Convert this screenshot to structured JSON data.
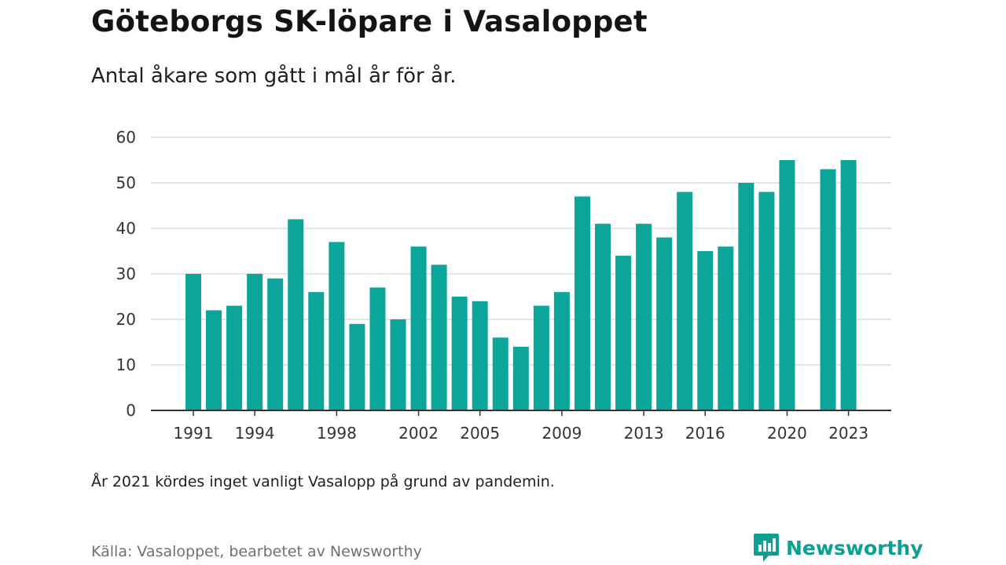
{
  "title": "Göteborgs SK-löpare i Vasaloppet",
  "subtitle": "Antal åkare som gått i mål år för år.",
  "note": "År 2021 kördes inget vanligt Vasalopp på grund av pandemin.",
  "source": "Källa: Vasaloppet, bearbetet av Newsworthy",
  "brand": {
    "name": "Newsworthy",
    "icon": "newsworthy-logo-icon",
    "color": "#0f9e92"
  },
  "chart_data": {
    "type": "bar",
    "bar_color": "#0ba59a",
    "categories": [
      1991,
      1992,
      1993,
      1994,
      1995,
      1996,
      1997,
      1998,
      1999,
      2000,
      2001,
      2002,
      2003,
      2004,
      2005,
      2006,
      2007,
      2008,
      2009,
      2010,
      2011,
      2012,
      2013,
      2014,
      2015,
      2016,
      2017,
      2018,
      2019,
      2020,
      2021,
      2022,
      2023
    ],
    "values": [
      30,
      22,
      23,
      30,
      29,
      42,
      26,
      37,
      19,
      27,
      20,
      36,
      32,
      25,
      24,
      16,
      14,
      23,
      26,
      47,
      41,
      34,
      41,
      38,
      48,
      35,
      36,
      50,
      48,
      55,
      null,
      53,
      55
    ],
    "xticks": [
      "1991",
      "1994",
      "1998",
      "2002",
      "2005",
      "2009",
      "2013",
      "2016",
      "2020",
      "2023"
    ],
    "ylim": [
      0,
      60
    ],
    "yticks": [
      0,
      10,
      20,
      30,
      40,
      50,
      60
    ],
    "grid": true,
    "xlabel": "",
    "ylabel": ""
  }
}
